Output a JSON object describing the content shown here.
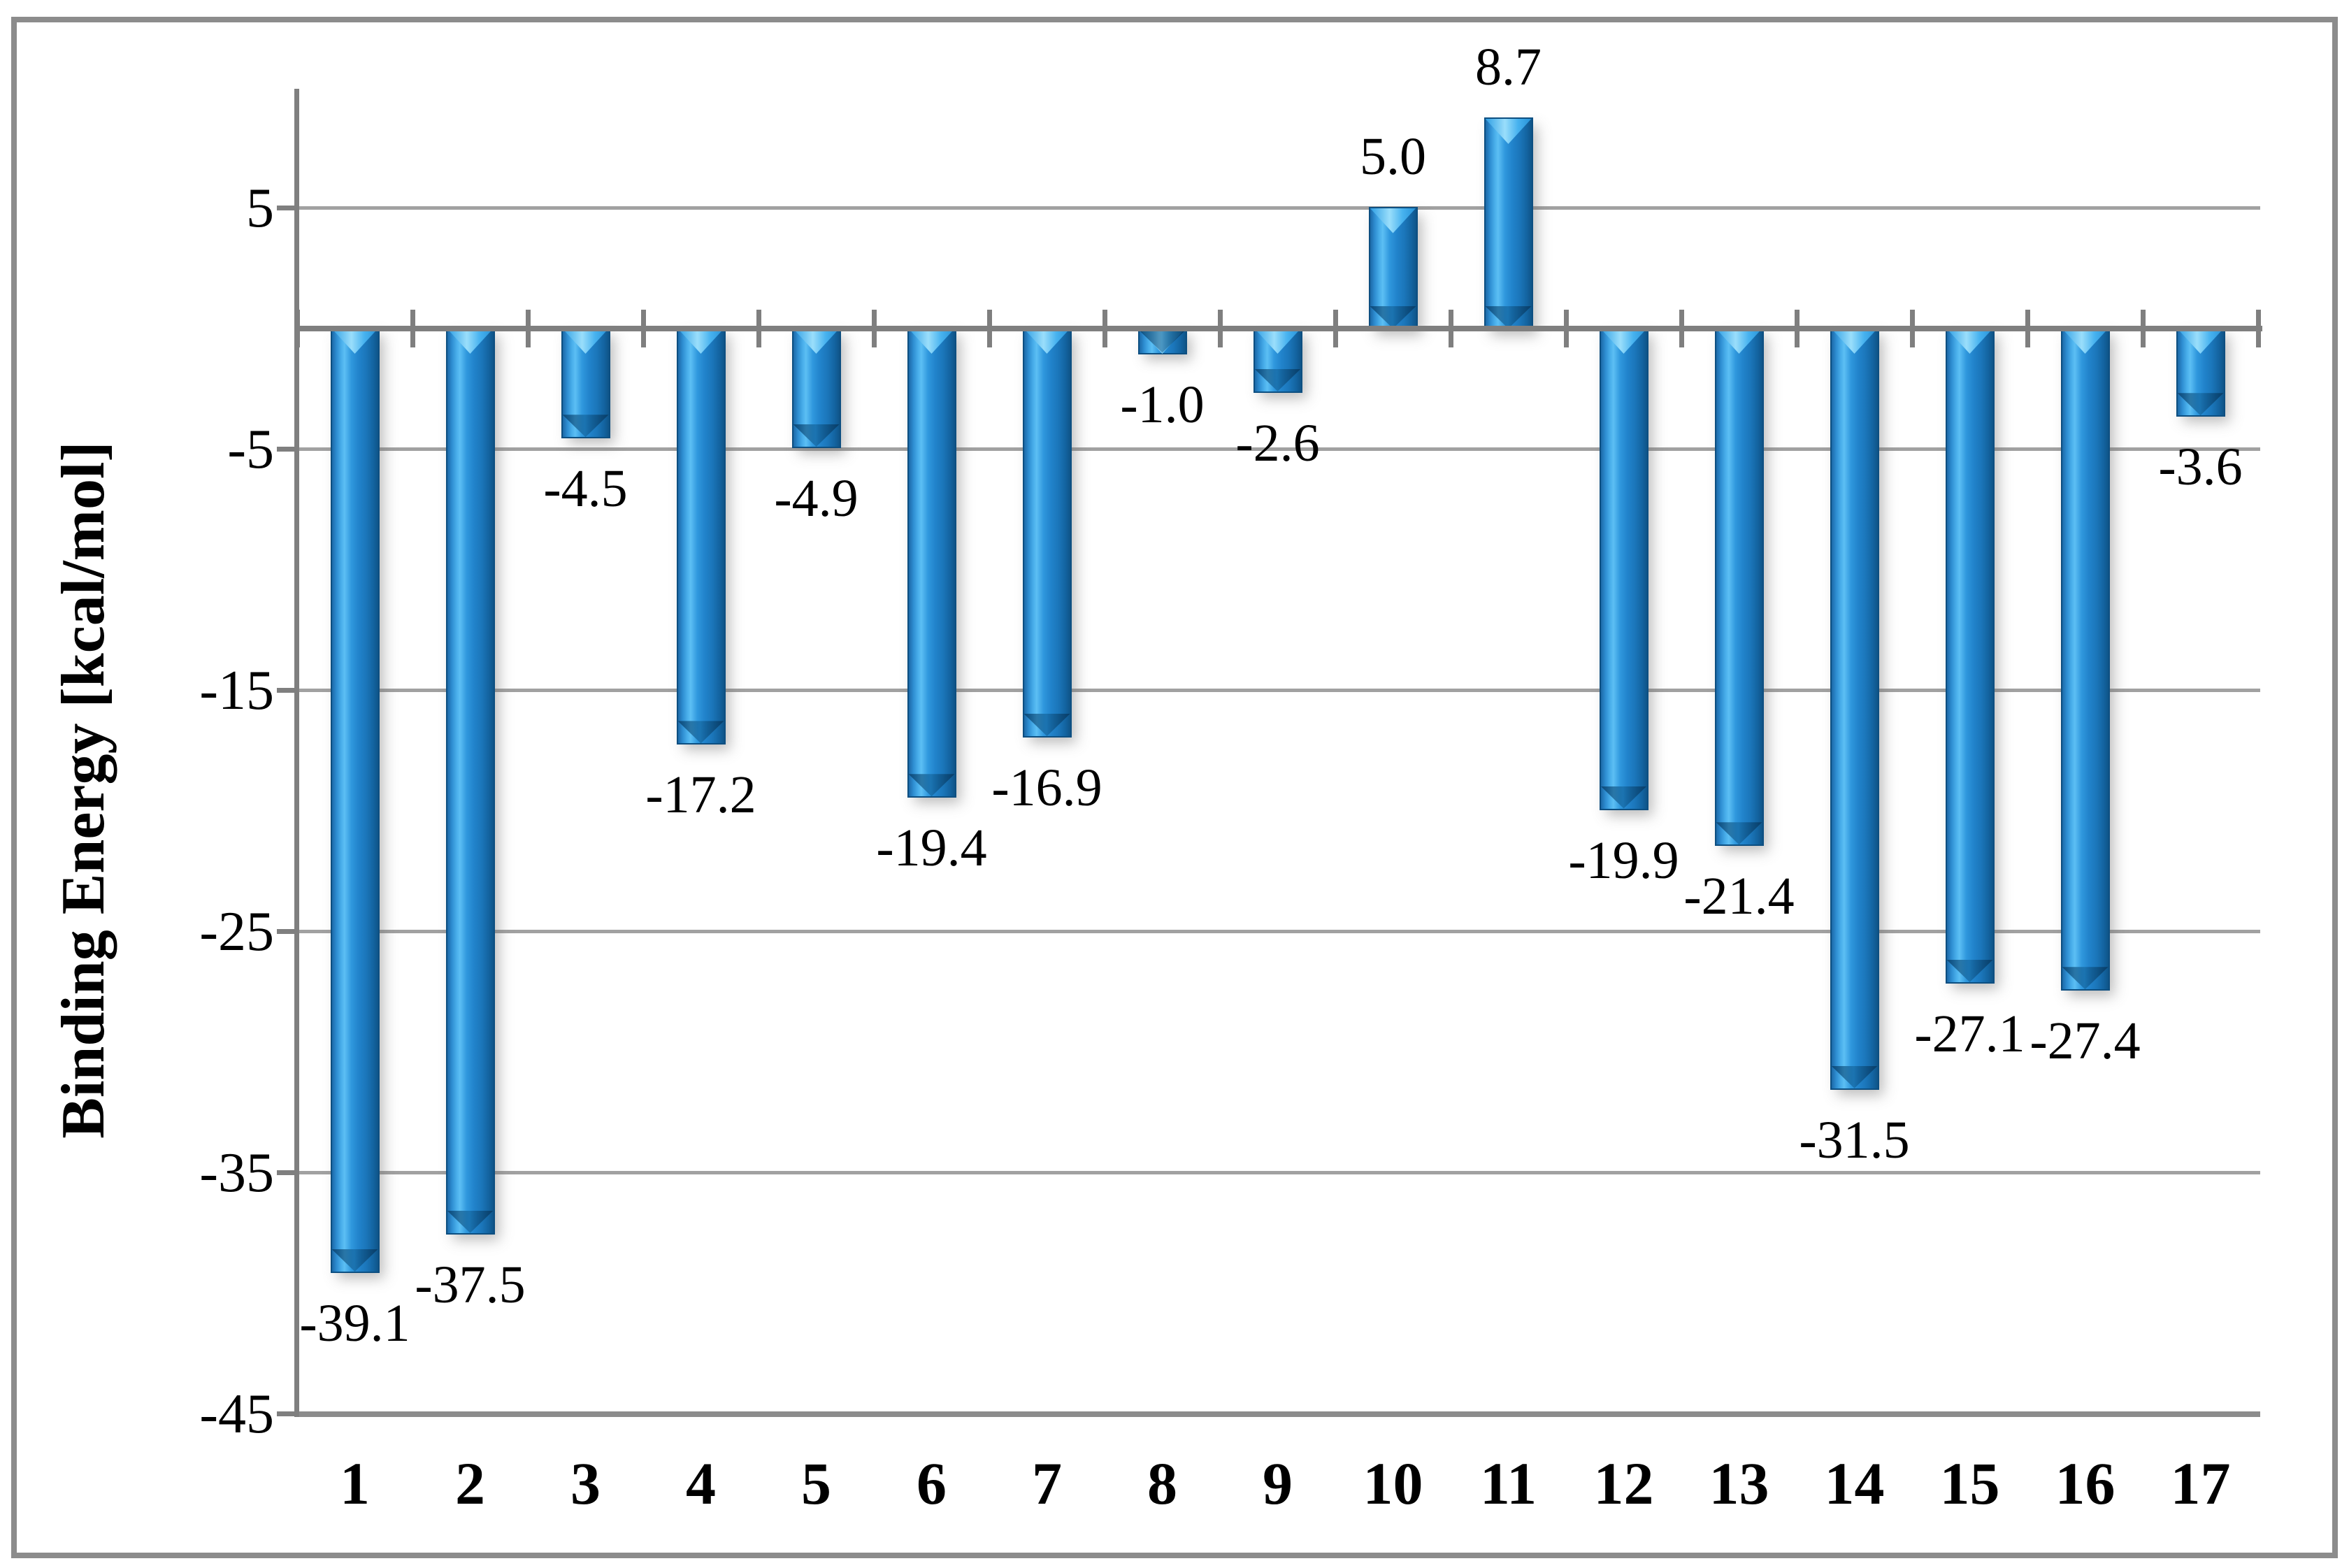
{
  "figure": {
    "background_color": "#ffffff",
    "border_color": "#8c8c8c"
  },
  "chart_data": {
    "type": "bar",
    "title": "",
    "xlabel": "",
    "ylabel": "Binding Energy [kcal/mol]",
    "categories": [
      "1",
      "2",
      "3",
      "4",
      "5",
      "6",
      "7",
      "8",
      "9",
      "10",
      "11",
      "12",
      "13",
      "14",
      "15",
      "16",
      "17"
    ],
    "values": [
      -39.1,
      -37.5,
      -4.5,
      -17.2,
      -4.9,
      -19.4,
      -16.9,
      -1.0,
      -2.6,
      5.0,
      8.7,
      -19.9,
      -21.4,
      -31.5,
      -27.1,
      -27.4,
      -3.6
    ],
    "data_labels": [
      "-39.1",
      "-37.5",
      "-4.5",
      "-17.2",
      "-4.9",
      "-19.4",
      "-16.9",
      "-1.0",
      "-2.6",
      "5.0",
      "8.7",
      "-19.9",
      "-21.4",
      "-31.5",
      "-27.1",
      "-27.4",
      "-3.6"
    ],
    "ylim": [
      -45,
      10
    ],
    "ytick_values": [
      5,
      -5,
      -15,
      -25,
      -35,
      -45
    ],
    "ytick_labels": [
      "5",
      "-5",
      "-15",
      "-25",
      "-35",
      "-45"
    ],
    "grid": "horizontal-only",
    "legend": "none",
    "bar_color": "#1f7fc4",
    "bar_highlight_color": "#9adefb",
    "bar_edge_color": "#0d4f81",
    "axis_color": "#7f7f7f",
    "gridline_color": "#a1a1a1",
    "label_color": "#000000"
  }
}
